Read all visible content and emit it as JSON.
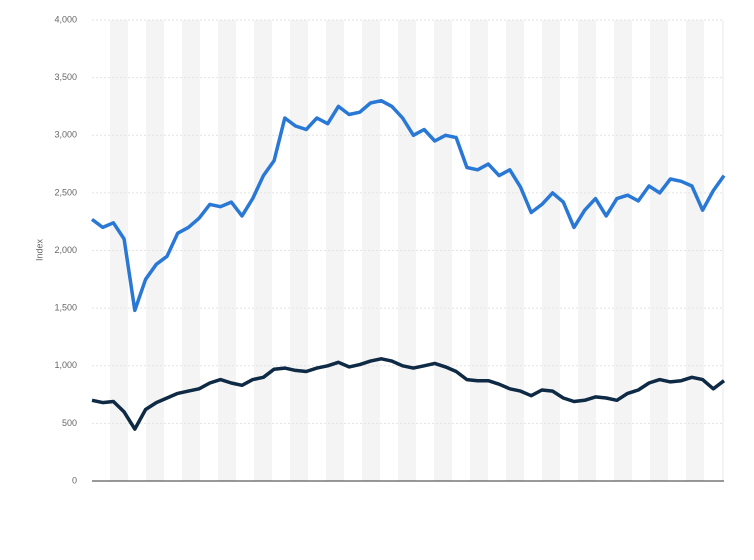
{
  "chart_data": {
    "type": "line",
    "y_label": "Index",
    "series": [
      {
        "color": "#2a78d6",
        "values": [
          2270,
          2200,
          2240,
          2100,
          1480,
          1750,
          1880,
          1950,
          2150,
          2200,
          2280,
          2400,
          2380,
          2420,
          2300,
          2450,
          2650,
          2780,
          3150,
          3080,
          3050,
          3150,
          3100,
          3250,
          3180,
          3200,
          3280,
          3300,
          3250,
          3150,
          3000,
          3050,
          2950,
          3000,
          2980,
          2720,
          2700,
          2750,
          2650,
          2700,
          2550,
          2330,
          2400,
          2500,
          2420,
          2200,
          2350,
          2450,
          2300,
          2450,
          2480,
          2430,
          2560,
          2500,
          2620,
          2600,
          2560,
          2350,
          2520,
          2650
        ]
      },
      {
        "color": "#0e2a45",
        "values": [
          700,
          680,
          690,
          600,
          450,
          620,
          680,
          720,
          760,
          780,
          800,
          850,
          880,
          850,
          830,
          880,
          900,
          970,
          980,
          960,
          950,
          980,
          1000,
          1030,
          990,
          1010,
          1040,
          1060,
          1040,
          1000,
          980,
          1000,
          1020,
          990,
          950,
          880,
          870,
          870,
          840,
          800,
          780,
          740,
          790,
          780,
          720,
          690,
          700,
          730,
          720,
          700,
          760,
          790,
          850,
          880,
          860,
          870,
          900,
          880,
          800,
          870
        ]
      }
    ],
    "ylim": [
      0,
      4000
    ],
    "yticks": [
      0,
      500,
      {
        "value": 1000,
        "label": "1,000"
      },
      {
        "value": 1500,
        "label": "1,500"
      },
      {
        "value": 2000,
        "label": "2,000"
      },
      {
        "value": 2500,
        "label": "2,500"
      },
      {
        "value": 3000,
        "label": "3,000"
      },
      {
        "value": 3500,
        "label": "3,500"
      },
      {
        "value": 4000,
        "label": "4,000"
      }
    ],
    "grid": true
  }
}
